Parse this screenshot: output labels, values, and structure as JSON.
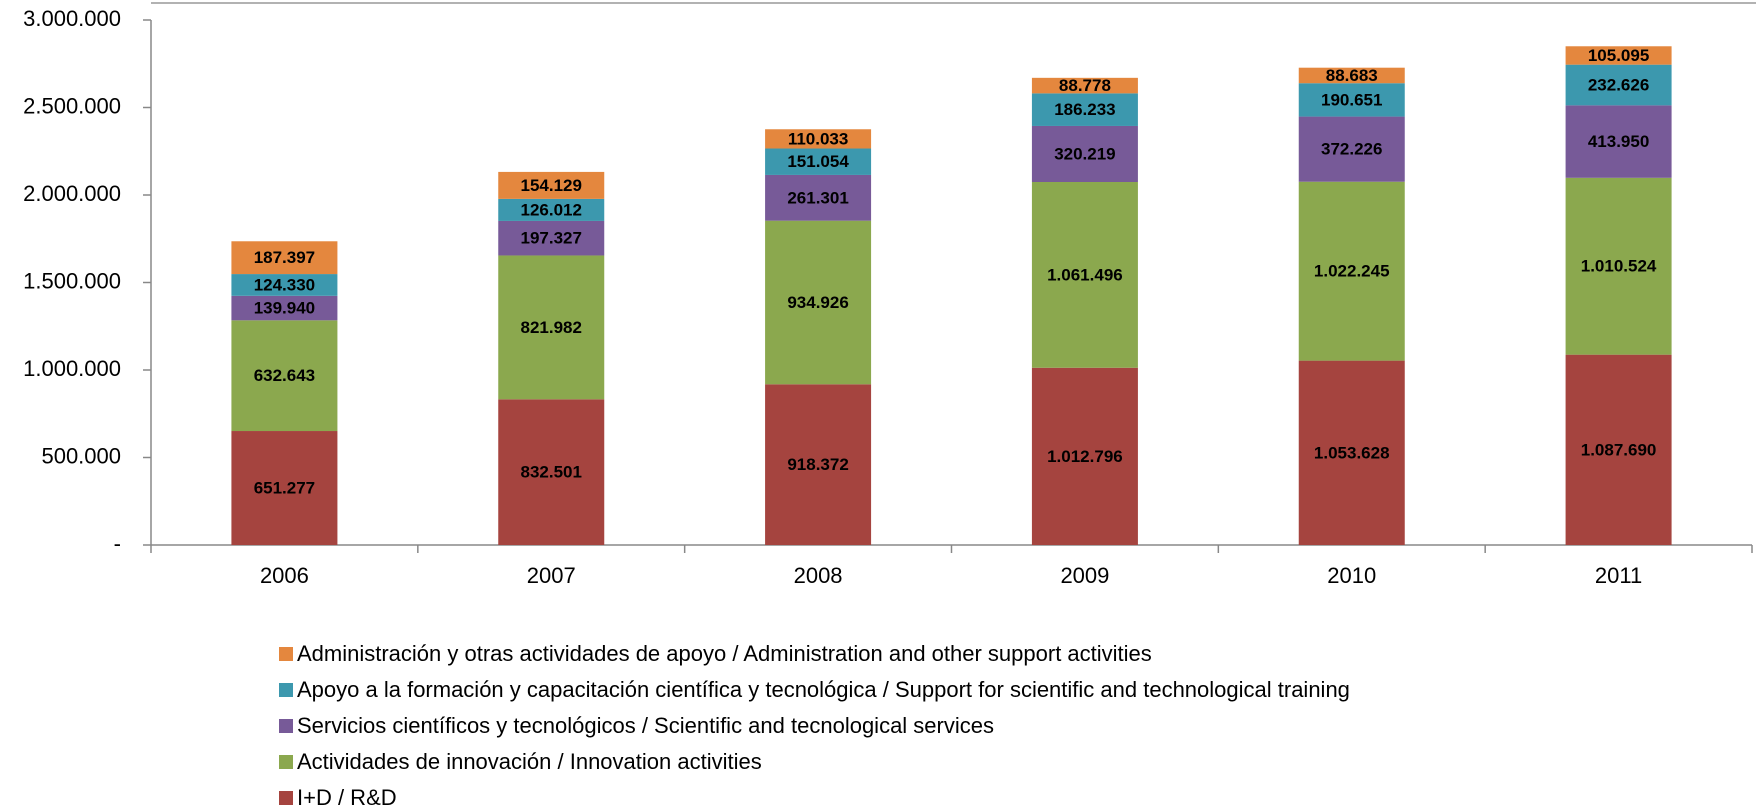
{
  "chart_data": {
    "type": "stacked_bar",
    "categories": [
      "2006",
      "2007",
      "2008",
      "2009",
      "2010",
      "2011"
    ],
    "series": [
      {
        "name": "I+D / R&D",
        "color": "#a5443f",
        "values": [
          651277,
          832501,
          918372,
          1012796,
          1053628,
          1087690
        ],
        "value_labels": [
          "651.277",
          "832.501",
          "918.372",
          "1.012.796",
          "1.053.628",
          "1.087.690"
        ]
      },
      {
        "name": "Actividades de innovación / Innovation activities",
        "color": "#8ba84e",
        "values": [
          632643,
          821982,
          934926,
          1061496,
          1022245,
          1010524
        ],
        "value_labels": [
          "632.643",
          "821.982",
          "934.926",
          "1.061.496",
          "1.022.245",
          "1.010.524"
        ]
      },
      {
        "name": "Servicios científicos y tecnológicos / Scientific and tecnological services",
        "color": "#775a98",
        "values": [
          139940,
          197327,
          261301,
          320219,
          372226,
          413950
        ],
        "value_labels": [
          "139.940",
          "197.327",
          "261.301",
          "320.219",
          "372.226",
          "413.950"
        ]
      },
      {
        "name": "Apoyo a la formación y capacitación científica y tecnológica / Support for scientific and technological training",
        "color": "#3c98ae",
        "values": [
          124330,
          126012,
          151054,
          186233,
          190651,
          232626
        ],
        "value_labels": [
          "124.330",
          "126.012",
          "151.054",
          "186.233",
          "190.651",
          "232.626"
        ]
      },
      {
        "name": "Administración y otras actividades de apoyo / Administration and other support activities",
        "color": "#e4873e",
        "values": [
          187397,
          154129,
          110033,
          88778,
          88683,
          105095
        ],
        "value_labels": [
          "187.397",
          "154.129",
          "110.033",
          "88.778",
          "88.683",
          "105.095"
        ]
      }
    ],
    "ylim": [
      0,
      3000000
    ],
    "yticks": [
      {
        "value": 0,
        "label": "-"
      },
      {
        "value": 500000,
        "label": "500.000"
      },
      {
        "value": 1000000,
        "label": "1.000.000"
      },
      {
        "value": 1500000,
        "label": "1.500.000"
      },
      {
        "value": 2000000,
        "label": "2.000.000"
      },
      {
        "value": 2500000,
        "label": "2.500.000"
      },
      {
        "value": 3000000,
        "label": "3.000.000"
      }
    ],
    "legend": "bottom"
  }
}
